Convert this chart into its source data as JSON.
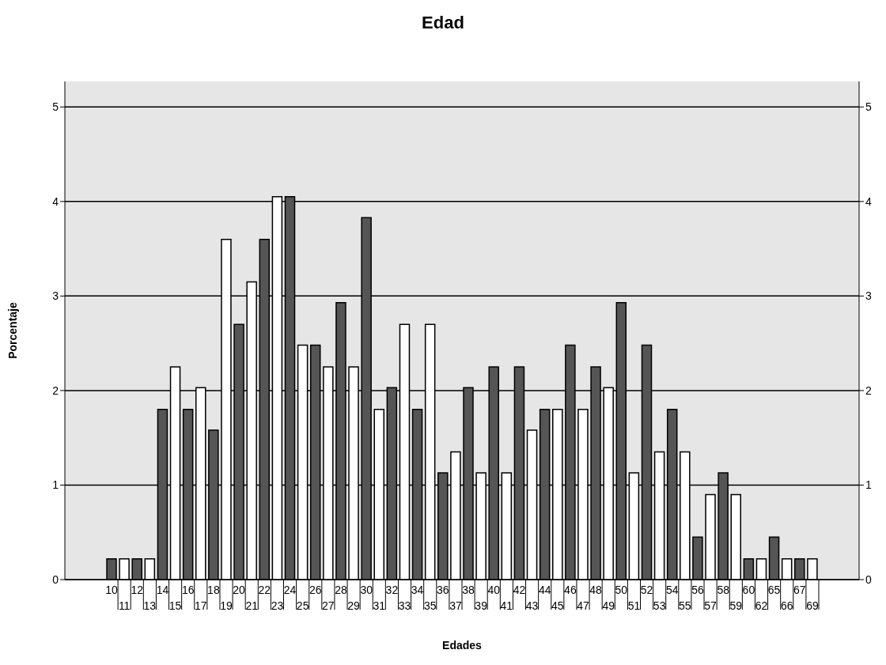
{
  "chart_data": {
    "type": "bar",
    "title": "Edad",
    "xlabel": "Edades",
    "ylabel": "Porcentaje",
    "categories": [
      "10",
      "11",
      "12",
      "13",
      "14",
      "15",
      "16",
      "17",
      "18",
      "19",
      "20",
      "21",
      "22",
      "23",
      "24",
      "25",
      "26",
      "27",
      "28",
      "29",
      "30",
      "31",
      "32",
      "33",
      "34",
      "35",
      "36",
      "37",
      "38",
      "39",
      "40",
      "41",
      "42",
      "43",
      "44",
      "45",
      "46",
      "47",
      "48",
      "49",
      "50",
      "51",
      "52",
      "53",
      "54",
      "55",
      "56",
      "57",
      "58",
      "59",
      "60",
      "62",
      "65",
      "66",
      "67",
      "69"
    ],
    "values": [
      0.22,
      0.22,
      0.22,
      0.22,
      1.8,
      2.25,
      1.8,
      2.03,
      1.58,
      3.6,
      2.7,
      3.15,
      3.6,
      4.05,
      4.05,
      2.48,
      2.48,
      2.25,
      2.93,
      2.25,
      3.83,
      1.8,
      2.03,
      2.7,
      1.8,
      2.7,
      1.13,
      1.35,
      2.03,
      1.13,
      2.25,
      1.13,
      2.25,
      1.58,
      1.8,
      1.8,
      2.48,
      1.8,
      2.25,
      2.03,
      2.93,
      1.13,
      2.48,
      1.35,
      1.8,
      1.35,
      0.45,
      0.9,
      1.13,
      0.9,
      0.22,
      0.22,
      0.45,
      0.22,
      0.22,
      0.22
    ],
    "colors": [
      "#555555",
      "#ffffff",
      "#555555",
      "#ffffff",
      "#555555",
      "#ffffff",
      "#555555",
      "#ffffff",
      "#555555",
      "#ffffff",
      "#555555",
      "#ffffff",
      "#555555",
      "#ffffff",
      "#555555",
      "#ffffff",
      "#555555",
      "#ffffff",
      "#555555",
      "#ffffff",
      "#555555",
      "#ffffff",
      "#555555",
      "#ffffff",
      "#555555",
      "#ffffff",
      "#555555",
      "#ffffff",
      "#555555",
      "#ffffff",
      "#555555",
      "#ffffff",
      "#555555",
      "#ffffff",
      "#555555",
      "#ffffff",
      "#555555",
      "#ffffff",
      "#555555",
      "#ffffff",
      "#555555",
      "#ffffff",
      "#555555",
      "#ffffff",
      "#555555",
      "#ffffff",
      "#555555",
      "#ffffff",
      "#555555",
      "#ffffff",
      "#555555",
      "#ffffff",
      "#555555",
      "#ffffff",
      "#555555",
      "#ffffff"
    ],
    "ylim": [
      0,
      5.27
    ],
    "yticks": [
      0,
      1,
      2,
      3,
      4,
      5
    ],
    "y2lim": [
      0,
      5.27
    ],
    "y2ticks": [
      0,
      1,
      2,
      3,
      4,
      5
    ],
    "grid": "y",
    "legend": false
  }
}
